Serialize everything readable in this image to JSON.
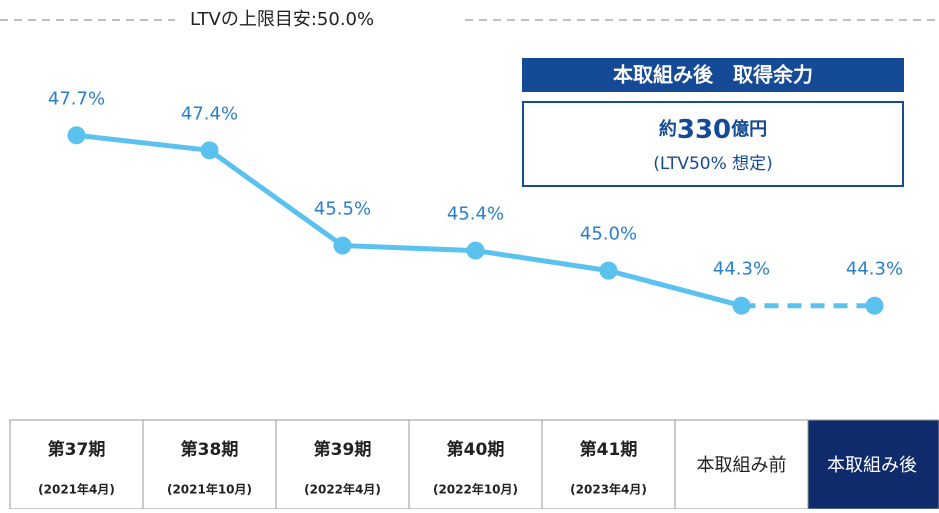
{
  "chart_data": {
    "type": "line",
    "limit": {
      "value": 50,
      "label": "LTVの上限目安:50.0%"
    },
    "categories": [
      "第37期",
      "第38期",
      "第39期",
      "第40期",
      "第41期",
      "本取組み前",
      "本取組み後"
    ],
    "sub_labels": [
      "(2021年4月)",
      "(2021年10月)",
      "(2022年4月)",
      "(2022年10月)",
      "(2023年4月)",
      null,
      null
    ],
    "values": [
      47.7,
      47.4,
      45.5,
      45.4,
      45.0,
      44.3,
      44.3
    ],
    "value_labels": [
      "47.7%",
      "47.4%",
      "45.5%",
      "45.4%",
      "45.0%",
      "44.3%",
      "44.3%"
    ],
    "color": "#5bc2ef",
    "dashed_from": 5,
    "ylim": [
      42,
      50
    ],
    "callout": {
      "title": "本取組み後　取得余力",
      "prefix": "約",
      "amount": "330",
      "unit": "億円",
      "note": "(LTV50% 想定)"
    }
  }
}
